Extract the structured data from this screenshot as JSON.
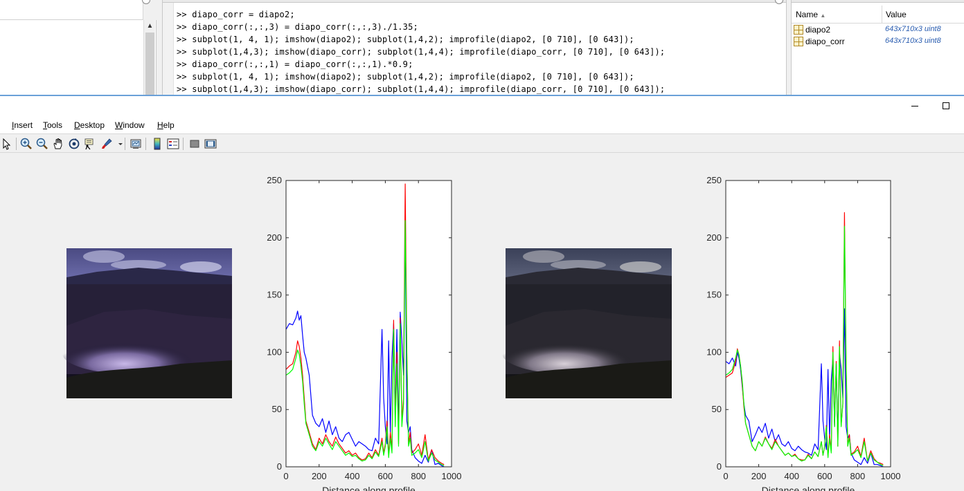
{
  "desktop": {
    "command_window": {
      "lines": [
        ">> diapo_corr = diapo2;",
        ">> diapo_corr(:,:,3) = diapo_corr(:,:,3)./1.35;",
        ">> subplot(1, 4, 1); imshow(diapo2); subplot(1,4,2); improfile(diapo2, [0 710], [0 643]);",
        ">> subplot(1,4,3); imshow(diapo_corr); subplot(1,4,4); improfile(diapo_corr, [0 710], [0 643]);",
        ">> diapo_corr(:,:,1) = diapo_corr(:,:,1).*0.9;",
        ">> subplot(1, 4, 1); imshow(diapo2); subplot(1,4,2); improfile(diapo2, [0 710], [0 643]);",
        ">> subplot(1,4,3); imshow(diapo_corr); subplot(1,4,4); improfile(diapo_corr, [0 710], [0 643]);"
      ]
    },
    "workspace": {
      "col_name": "Name",
      "col_value": "Value",
      "variables": [
        {
          "name": "diapo2",
          "value": "643x710x3 uint8"
        },
        {
          "name": "diapo_corr",
          "value": "643x710x3 uint8"
        }
      ]
    }
  },
  "figure": {
    "menu": [
      {
        "label": "Insert",
        "key": "I"
      },
      {
        "label": "Tools",
        "key": "T"
      },
      {
        "label": "Desktop",
        "key": "D"
      },
      {
        "label": "Window",
        "key": "W"
      },
      {
        "label": "Help",
        "key": "H"
      }
    ],
    "toolbar_icons": [
      "pointer-icon",
      "zoom-in-icon",
      "zoom-out-icon",
      "pan-icon",
      "rotate-3d-icon",
      "data-cursor-icon",
      "brush-icon",
      "link-plot-icon",
      "colorbar-icon",
      "legend-icon",
      "hide-plot-tools-icon",
      "show-plot-tools-icon"
    ],
    "colors": {
      "red": "#ff0000",
      "green": "#00ff00",
      "blue": "#0000ff"
    }
  },
  "chart_data": [
    {
      "type": "line",
      "xlabel": "Distance along profile",
      "ylabel": "",
      "xlim": [
        0,
        1000
      ],
      "ylim": [
        0,
        250
      ],
      "xticks": [
        0,
        200,
        400,
        600,
        800,
        1000
      ],
      "yticks": [
        0,
        50,
        100,
        150,
        200,
        250
      ],
      "grid": false,
      "series": [
        {
          "color": "#0000ff",
          "x": [
            0,
            20,
            40,
            60,
            70,
            80,
            90,
            100,
            110,
            120,
            140,
            160,
            180,
            200,
            220,
            240,
            260,
            280,
            300,
            320,
            340,
            360,
            380,
            400,
            420,
            440,
            460,
            480,
            500,
            520,
            540,
            560,
            580,
            590,
            600,
            610,
            620,
            630,
            640,
            650,
            660,
            670,
            680,
            690,
            700,
            710,
            720,
            730,
            740,
            750,
            760,
            780,
            800,
            820,
            840,
            860,
            880,
            900,
            920,
            940,
            955
          ],
          "y": [
            120,
            125,
            124,
            130,
            136,
            128,
            132,
            115,
            100,
            95,
            80,
            45,
            38,
            35,
            42,
            30,
            40,
            28,
            35,
            25,
            22,
            28,
            30,
            24,
            18,
            22,
            20,
            18,
            15,
            14,
            25,
            20,
            120,
            60,
            35,
            20,
            110,
            30,
            95,
            125,
            45,
            120,
            30,
            135,
            110,
            80,
            210,
            40,
            30,
            35,
            15,
            8,
            5,
            3,
            10,
            4,
            15,
            2,
            3,
            1,
            0
          ]
        },
        {
          "color": "#ff0000",
          "x": [
            0,
            20,
            40,
            60,
            70,
            80,
            90,
            100,
            110,
            120,
            140,
            160,
            180,
            200,
            220,
            240,
            260,
            280,
            300,
            320,
            340,
            360,
            380,
            400,
            420,
            440,
            460,
            480,
            500,
            520,
            540,
            560,
            580,
            590,
            600,
            610,
            620,
            630,
            640,
            650,
            660,
            670,
            680,
            690,
            700,
            710,
            720,
            730,
            740,
            750,
            760,
            780,
            800,
            820,
            840,
            860,
            880,
            900,
            920,
            940,
            955
          ],
          "y": [
            85,
            88,
            90,
            100,
            110,
            105,
            95,
            80,
            60,
            40,
            30,
            20,
            15,
            25,
            20,
            28,
            22,
            18,
            26,
            20,
            16,
            12,
            14,
            10,
            12,
            8,
            6,
            7,
            12,
            8,
            15,
            10,
            25,
            12,
            20,
            40,
            10,
            30,
            15,
            128,
            40,
            100,
            20,
            130,
            40,
            60,
            247,
            100,
            20,
            30,
            12,
            15,
            20,
            10,
            28,
            6,
            15,
            8,
            5,
            3,
            2
          ]
        },
        {
          "color": "#00ff00",
          "x": [
            0,
            20,
            40,
            60,
            70,
            80,
            90,
            100,
            110,
            120,
            140,
            160,
            180,
            200,
            220,
            240,
            260,
            280,
            300,
            320,
            340,
            360,
            380,
            400,
            420,
            440,
            460,
            480,
            500,
            520,
            540,
            560,
            580,
            590,
            600,
            610,
            620,
            630,
            640,
            650,
            660,
            670,
            680,
            690,
            700,
            710,
            720,
            730,
            740,
            750,
            760,
            780,
            800,
            820,
            840,
            860,
            880,
            900,
            920,
            940,
            955
          ],
          "y": [
            80,
            82,
            85,
            95,
            102,
            98,
            88,
            75,
            55,
            38,
            28,
            18,
            14,
            22,
            18,
            25,
            20,
            15,
            22,
            18,
            14,
            10,
            12,
            9,
            10,
            7,
            5,
            6,
            10,
            7,
            13,
            9,
            22,
            10,
            18,
            35,
            8,
            25,
            12,
            120,
            35,
            90,
            18,
            125,
            35,
            55,
            215,
            95,
            18,
            25,
            10,
            12,
            15,
            8,
            22,
            5,
            12,
            6,
            4,
            2,
            1
          ]
        }
      ]
    },
    {
      "type": "line",
      "xlabel": "Distance along profile",
      "ylabel": "",
      "xlim": [
        0,
        1000
      ],
      "ylim": [
        0,
        250
      ],
      "xticks": [
        0,
        200,
        400,
        600,
        800,
        1000
      ],
      "yticks": [
        0,
        50,
        100,
        150,
        200,
        250
      ],
      "grid": false,
      "series": [
        {
          "color": "#0000ff",
          "x": [
            0,
            20,
            40,
            60,
            70,
            80,
            90,
            100,
            110,
            120,
            140,
            160,
            180,
            200,
            220,
            240,
            260,
            280,
            300,
            320,
            340,
            360,
            380,
            400,
            420,
            440,
            460,
            480,
            500,
            520,
            540,
            560,
            580,
            590,
            600,
            610,
            620,
            630,
            640,
            650,
            660,
            670,
            680,
            690,
            700,
            710,
            720,
            730,
            740,
            750,
            760,
            780,
            800,
            820,
            840,
            860,
            880,
            900,
            920,
            940,
            955
          ],
          "y": [
            92,
            90,
            95,
            88,
            100,
            95,
            85,
            70,
            55,
            45,
            40,
            22,
            28,
            35,
            30,
            38,
            25,
            33,
            22,
            28,
            20,
            18,
            22,
            16,
            14,
            18,
            15,
            13,
            12,
            10,
            20,
            15,
            90,
            40,
            25,
            15,
            85,
            25,
            75,
            95,
            35,
            90,
            25,
            100,
            85,
            60,
            138,
            35,
            25,
            28,
            12,
            6,
            4,
            2,
            8,
            3,
            12,
            2,
            2,
            1,
            0
          ]
        },
        {
          "color": "#ff0000",
          "x": [
            0,
            20,
            40,
            60,
            70,
            80,
            90,
            100,
            110,
            120,
            140,
            160,
            180,
            200,
            220,
            240,
            260,
            280,
            300,
            320,
            340,
            360,
            380,
            400,
            420,
            440,
            460,
            480,
            500,
            520,
            540,
            560,
            580,
            590,
            600,
            610,
            620,
            630,
            640,
            650,
            660,
            670,
            680,
            690,
            700,
            710,
            720,
            730,
            740,
            750,
            760,
            780,
            800,
            820,
            840,
            860,
            880,
            900,
            920,
            940,
            955
          ],
          "y": [
            78,
            80,
            82,
            92,
            103,
            98,
            88,
            72,
            52,
            38,
            28,
            18,
            14,
            22,
            18,
            26,
            20,
            16,
            24,
            18,
            14,
            10,
            12,
            9,
            11,
            7,
            6,
            6,
            11,
            7,
            13,
            9,
            22,
            10,
            18,
            36,
            9,
            28,
            14,
            105,
            36,
            92,
            18,
            110,
            36,
            55,
            222,
            90,
            18,
            28,
            11,
            13,
            18,
            9,
            25,
            5,
            14,
            7,
            4,
            3,
            2
          ]
        },
        {
          "color": "#00ff00",
          "x": [
            0,
            20,
            40,
            60,
            70,
            80,
            90,
            100,
            110,
            120,
            140,
            160,
            180,
            200,
            220,
            240,
            260,
            280,
            300,
            320,
            340,
            360,
            380,
            400,
            420,
            440,
            460,
            480,
            500,
            520,
            540,
            560,
            580,
            590,
            600,
            610,
            620,
            630,
            640,
            650,
            660,
            670,
            680,
            690,
            700,
            710,
            720,
            730,
            740,
            750,
            760,
            780,
            800,
            820,
            840,
            860,
            880,
            900,
            920,
            940,
            955
          ],
          "y": [
            80,
            82,
            85,
            95,
            102,
            98,
            88,
            75,
            55,
            38,
            28,
            18,
            14,
            22,
            18,
            25,
            20,
            15,
            22,
            18,
            14,
            10,
            12,
            9,
            10,
            7,
            5,
            6,
            10,
            7,
            13,
            9,
            22,
            10,
            18,
            35,
            8,
            25,
            12,
            100,
            35,
            90,
            18,
            105,
            35,
            55,
            210,
            95,
            18,
            25,
            10,
            12,
            15,
            8,
            22,
            5,
            12,
            6,
            4,
            2,
            1
          ]
        }
      ]
    }
  ]
}
